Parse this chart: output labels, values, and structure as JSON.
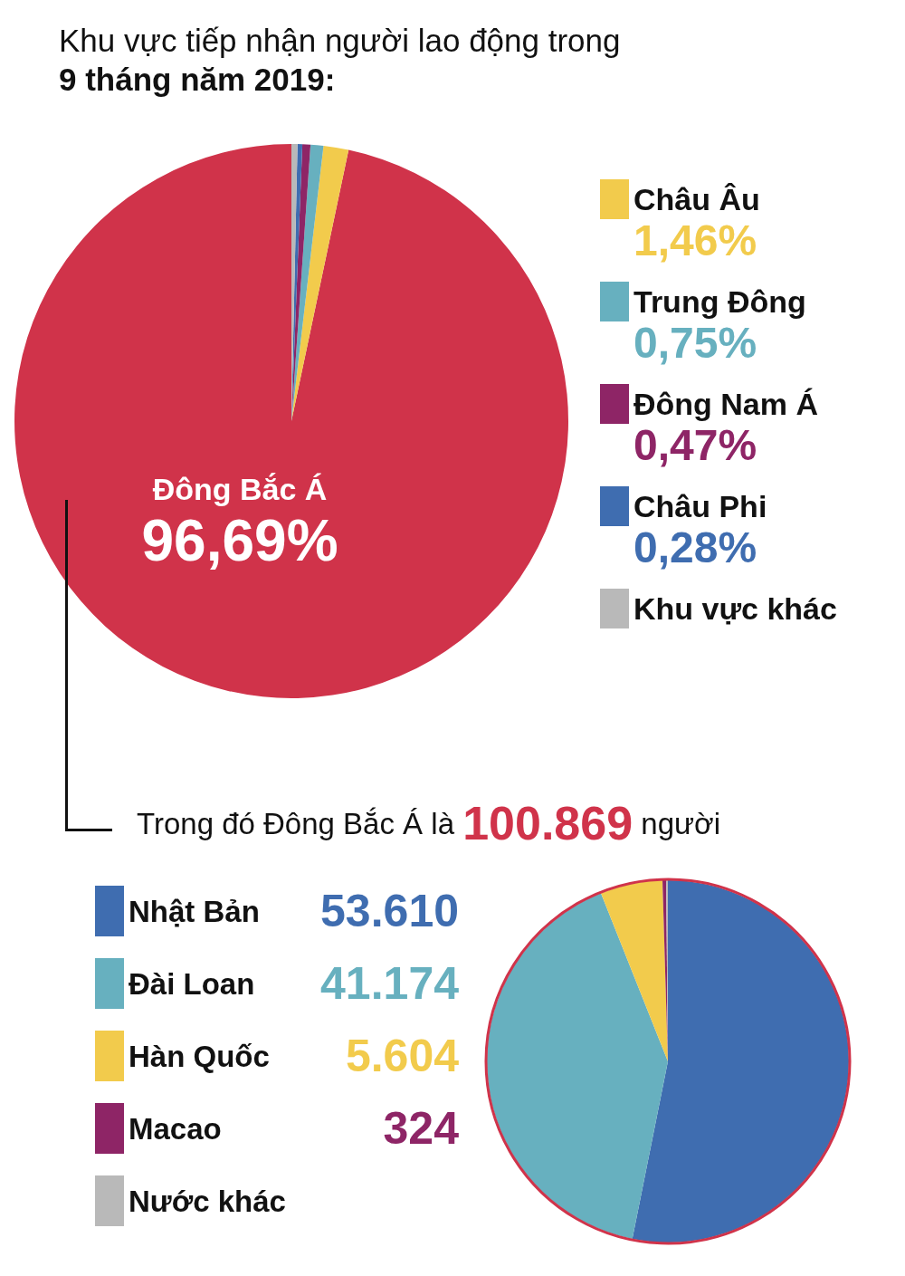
{
  "chart_data": [
    {
      "type": "pie",
      "title": "Khu vực tiếp nhận người lao động trong",
      "subtitle": "9 tháng năm 2019:",
      "categories": [
        "Đông Bắc Á",
        "Châu Âu",
        "Trung Đông",
        "Đông Nam Á",
        "Châu Phi",
        "Khu vực khác"
      ],
      "values": [
        96.69,
        1.46,
        0.75,
        0.47,
        0.28,
        0.35
      ],
      "colors": [
        "#d0334a",
        "#f2cb4c",
        "#67b0bf",
        "#8e2566",
        "#3f6db0",
        "#b9b9b9"
      ],
      "value_labels": [
        "96,69%",
        "1,46%",
        "0,75%",
        "0,47%",
        "0,28%",
        null
      ],
      "legend": "right"
    },
    {
      "type": "pie",
      "title": "Trong đó Đông Bắc Á là 100.869 người",
      "categories": [
        "Nhật Bản",
        "Đài Loan",
        "Hàn Quốc",
        "Macao",
        "Nước khác"
      ],
      "values": [
        53610,
        41174,
        5604,
        324,
        157
      ],
      "colors": [
        "#3f6db0",
        "#67b0bf",
        "#f2cb4c",
        "#8e2566",
        "#b9b9b9"
      ],
      "value_labels": [
        "53.610",
        "41.174",
        "5.604",
        "324",
        null
      ],
      "legend": "left"
    }
  ]
}
